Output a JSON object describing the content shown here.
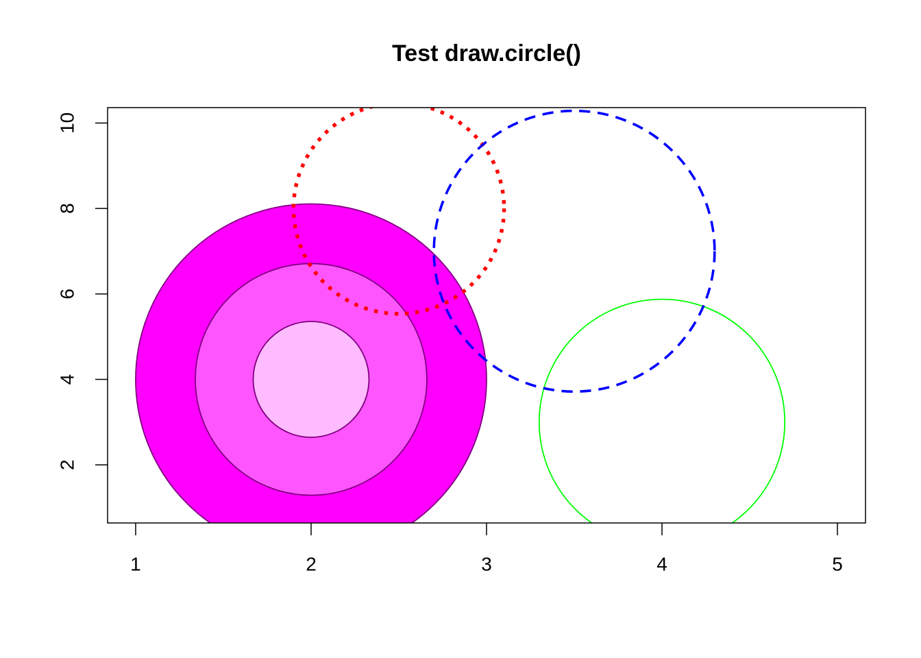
{
  "chart_data": {
    "type": "circle",
    "title": "Test draw.circle()",
    "xlim": [
      0.84,
      5.16
    ],
    "ylim": [
      0.64,
      10.36
    ],
    "xticks": [
      1,
      2,
      3,
      4,
      5
    ],
    "yticks": [
      2,
      4,
      6,
      8,
      10
    ],
    "circles": [
      {
        "x": 2,
        "y": 4,
        "radius": 1,
        "border": "purple",
        "fill": "#ff00ff",
        "lty": "solid",
        "lwd": 1
      },
      {
        "x": 2,
        "y": 4,
        "radius": 0.66,
        "border": "purple",
        "fill": "#ff55ff",
        "lty": "solid",
        "lwd": 1
      },
      {
        "x": 2,
        "y": 4,
        "radius": 0.33,
        "border": "purple",
        "fill": "#ffbbff",
        "lty": "solid",
        "lwd": 1
      },
      {
        "x": 2.5,
        "y": 8,
        "radius": 0.6,
        "border": "red",
        "fill": "none",
        "lty": "dotted",
        "lwd": 3
      },
      {
        "x": 4,
        "y": 3,
        "radius": 0.7,
        "border": "#00ff00",
        "fill": "none",
        "lty": "solid",
        "lwd": 1
      },
      {
        "x": 3.5,
        "y": 7,
        "radius": 0.8,
        "border": "blue",
        "fill": "none",
        "lty": "dashed",
        "lwd": 2
      }
    ]
  }
}
